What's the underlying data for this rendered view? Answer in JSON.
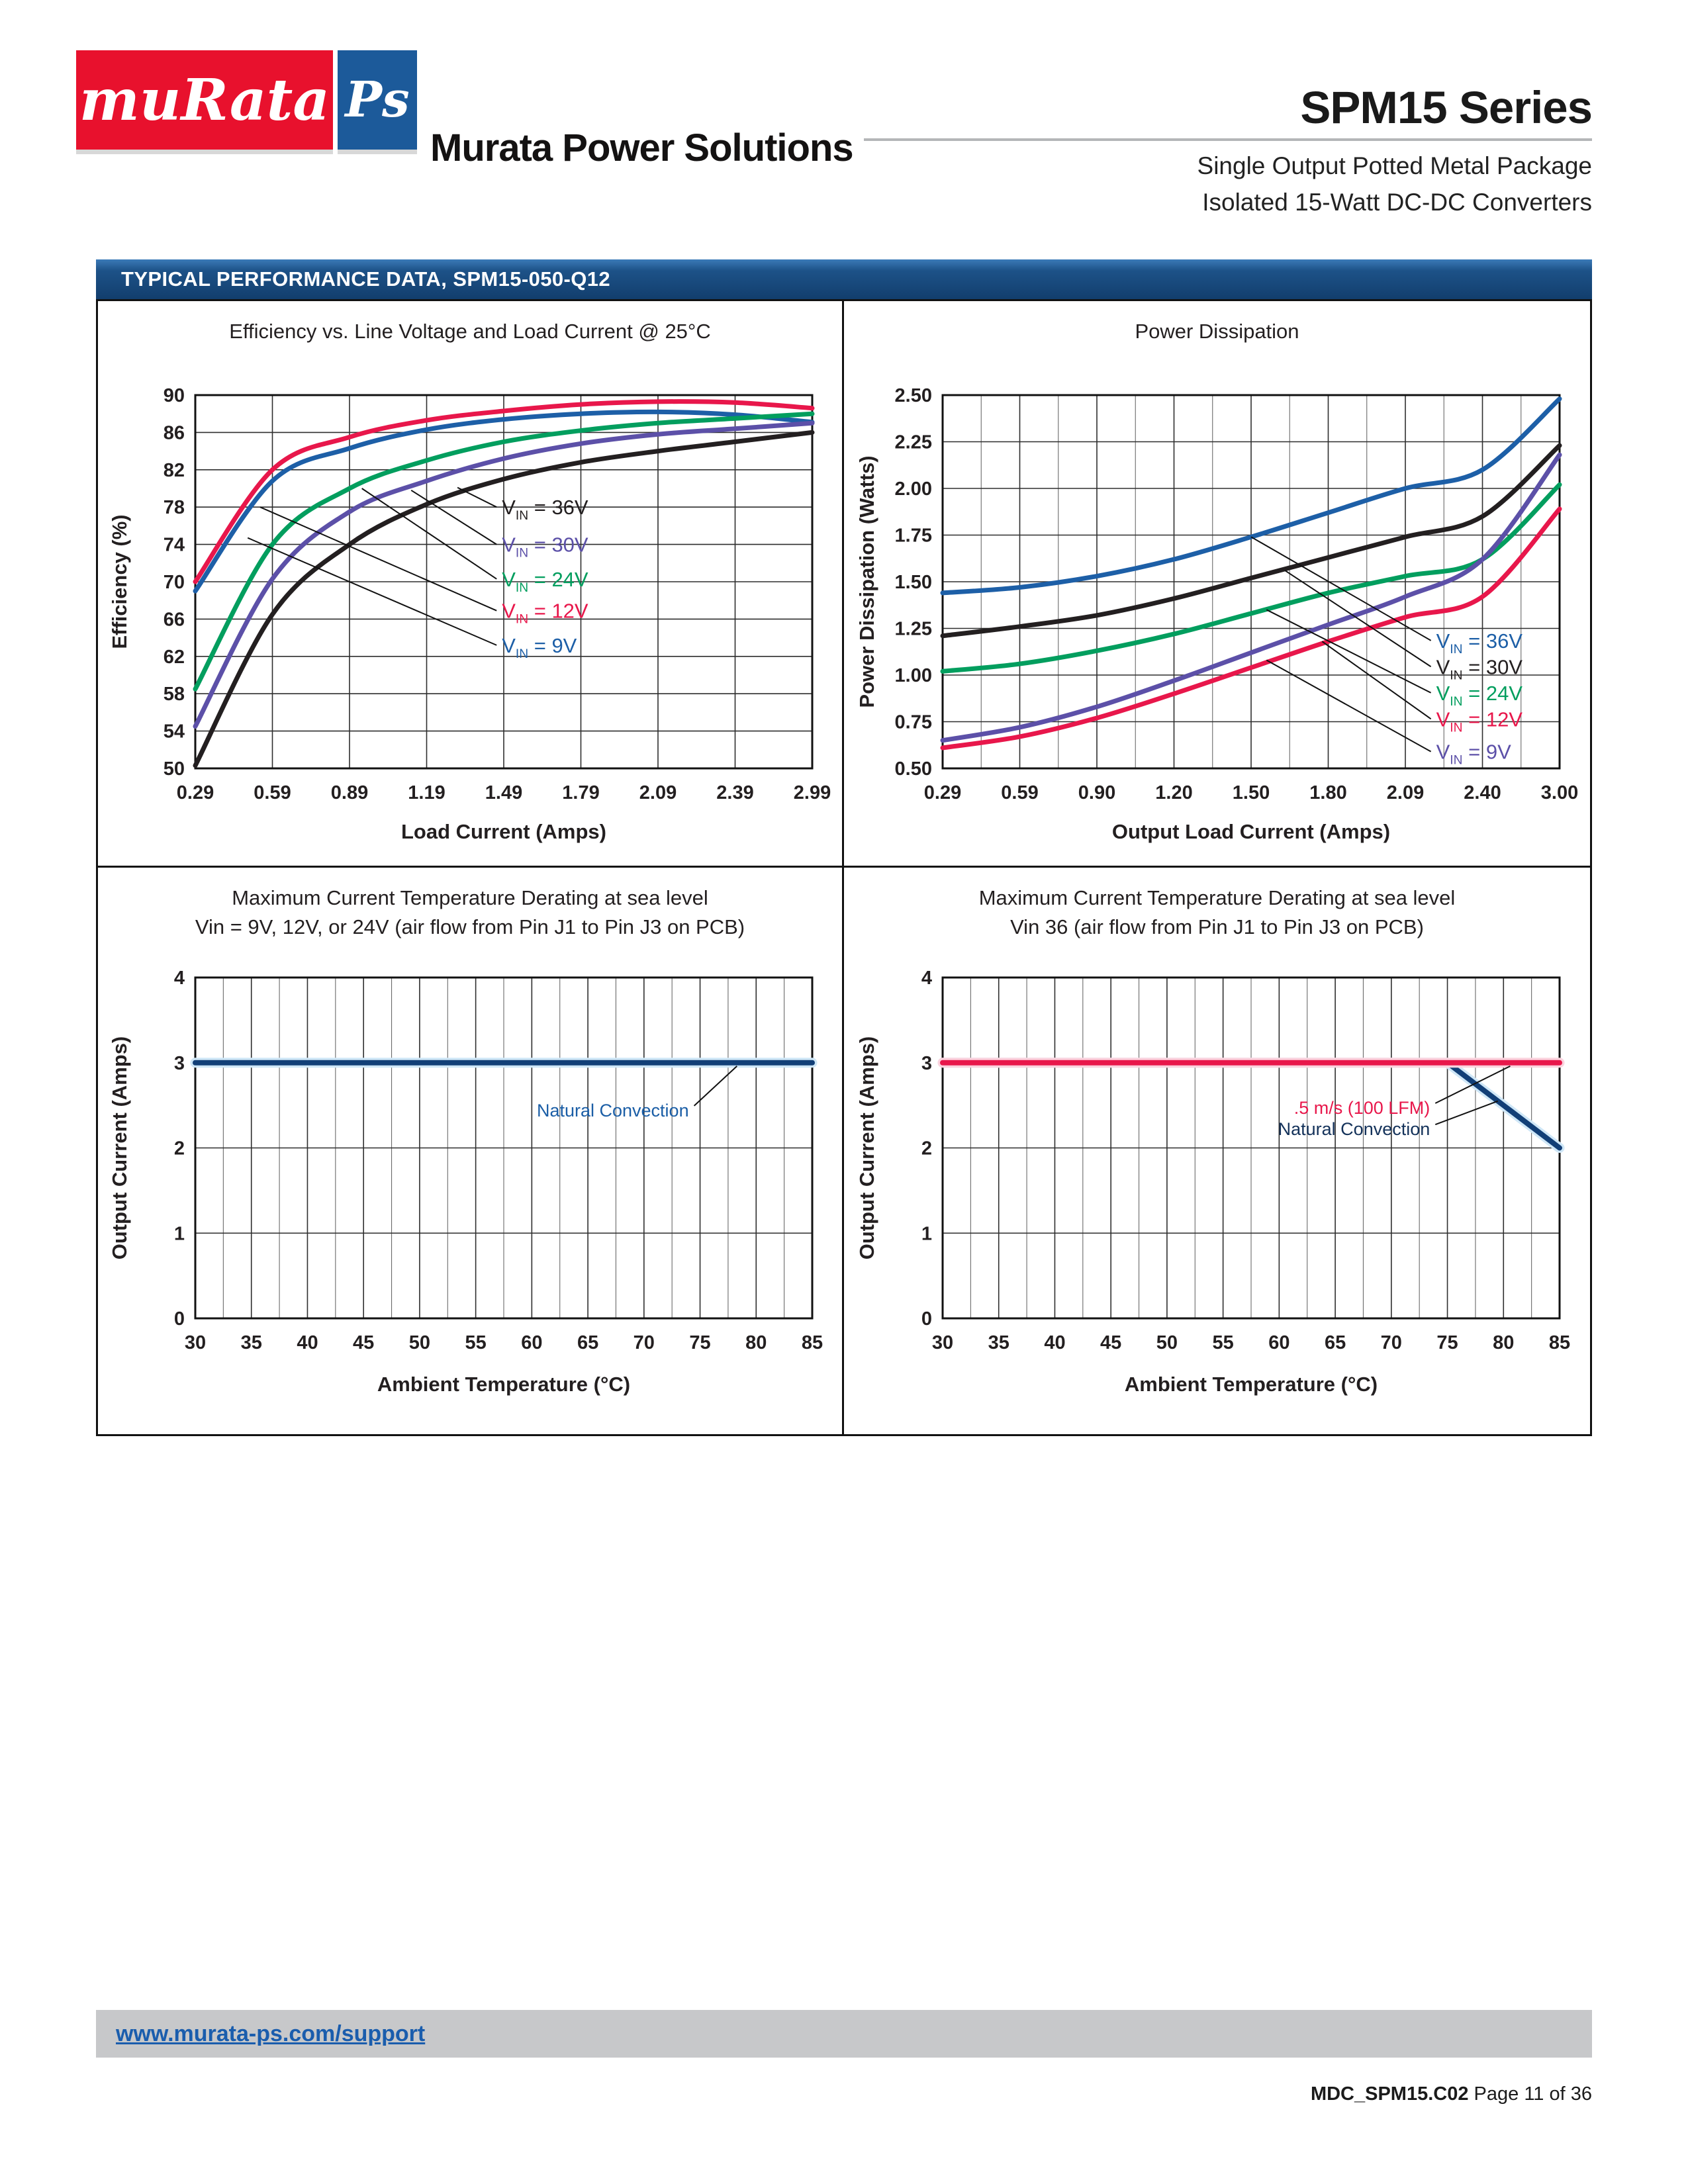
{
  "header": {
    "logo_murata": "muRata",
    "logo_ps": "Ps",
    "company": "Murata Power Solutions",
    "series_title": "SPM15 Series",
    "subtitle_line1": "Single Output Potted Metal Package",
    "subtitle_line2": "Isolated 15-Watt DC-DC Converters"
  },
  "banner": {
    "title": "TYPICAL PERFORMANCE DATA, SPM15-050-Q12"
  },
  "footer": {
    "support_link": "www.murata-ps.com/support",
    "doc_code": "MDC_SPM15.C02",
    "page_info": "Page 11 of 36"
  },
  "colors": {
    "murata_red": "#e8112d",
    "murata_blue": "#1c5a9a",
    "banner_blue": "#123e6d",
    "link_blue": "#1a5dad",
    "footer_gray": "#c7c8ca"
  },
  "chart_data": [
    {
      "type": "line",
      "title": "Efficiency vs. Line Voltage and Load Current @ 25°C",
      "xlabel": "Load Current (Amps)",
      "ylabel": "Efficiency (%)",
      "x_ticks": [
        "0.29",
        "0.59",
        "0.89",
        "1.19",
        "1.49",
        "1.79",
        "2.09",
        "2.39",
        "2.99"
      ],
      "ylim": [
        50,
        90
      ],
      "y_ticks": [
        "50",
        "54",
        "58",
        "62",
        "66",
        "70",
        "74",
        "78",
        "82",
        "86",
        "90"
      ],
      "grid": "on",
      "series": [
        {
          "name": "VIN = 12V",
          "color": "#e8174b",
          "values": [
            70.0,
            82.0,
            85.5,
            87.3,
            88.3,
            89.0,
            89.3,
            89.2,
            88.6
          ]
        },
        {
          "name": "VIN = 9V",
          "color": "#1d5fa7",
          "values": [
            69.0,
            80.8,
            84.3,
            86.3,
            87.4,
            88.0,
            88.2,
            87.9,
            87.1
          ]
        },
        {
          "name": "VIN = 24V",
          "color": "#029e5e",
          "values": [
            58.5,
            74.0,
            80.0,
            83.0,
            85.0,
            86.2,
            87.0,
            87.5,
            88.0
          ]
        },
        {
          "name": "VIN = 30V",
          "color": "#5c50a8",
          "values": [
            54.5,
            70.3,
            77.5,
            80.8,
            83.2,
            84.8,
            85.8,
            86.4,
            87.0
          ]
        },
        {
          "name": "VIN = 36V",
          "color": "#231f20",
          "values": [
            50.3,
            66.5,
            74.0,
            78.3,
            81.0,
            82.8,
            84.0,
            85.0,
            86.0
          ]
        }
      ],
      "legend": [
        {
          "label": "VIN = 36V",
          "color": "#231f20"
        },
        {
          "label": "VIN = 30V",
          "color": "#5c50a8"
        },
        {
          "label": "VIN = 24V",
          "color": "#029e5e"
        },
        {
          "label": "VIN = 12V",
          "color": "#e8174b"
        },
        {
          "label": "VIN = 9V",
          "color": "#1d5fa7"
        }
      ],
      "legend_position": "center-right"
    },
    {
      "type": "line",
      "title": "Power Dissipation",
      "xlabel": "Output Load Current (Amps)",
      "ylabel": "Power Dissipation (Watts)",
      "x_ticks": [
        "0.29",
        "0.59",
        "0.90",
        "1.20",
        "1.50",
        "1.80",
        "2.09",
        "2.40",
        "3.00"
      ],
      "ylim": [
        0.5,
        2.5
      ],
      "y_ticks": [
        "0.50",
        "0.75",
        "1.00",
        "1.25",
        "1.50",
        "1.75",
        "2.00",
        "2.25",
        "2.50"
      ],
      "grid": "on",
      "series": [
        {
          "name": "VIN = 36V",
          "color": "#1d5fa7",
          "values": [
            1.44,
            1.47,
            1.53,
            1.62,
            1.74,
            1.87,
            2.0,
            2.1,
            2.48
          ]
        },
        {
          "name": "VIN = 30V",
          "color": "#231f20",
          "values": [
            1.21,
            1.26,
            1.32,
            1.41,
            1.52,
            1.63,
            1.74,
            1.85,
            2.23
          ]
        },
        {
          "name": "VIN = 24V",
          "color": "#029e5e",
          "values": [
            1.02,
            1.06,
            1.13,
            1.22,
            1.33,
            1.44,
            1.53,
            1.62,
            2.02
          ]
        },
        {
          "name": "VIN = 9V",
          "color": "#5c50a8",
          "values": [
            0.65,
            0.72,
            0.83,
            0.97,
            1.12,
            1.27,
            1.42,
            1.62,
            2.18
          ]
        },
        {
          "name": "VIN = 12V",
          "color": "#e8174b",
          "values": [
            0.61,
            0.67,
            0.77,
            0.9,
            1.04,
            1.18,
            1.31,
            1.42,
            1.89
          ]
        }
      ],
      "legend": [
        {
          "label": "VIN = 36V",
          "color": "#1d5fa7"
        },
        {
          "label": "VIN = 30V",
          "color": "#231f20"
        },
        {
          "label": "VIN = 24V",
          "color": "#029e5e"
        },
        {
          "label": "VIN = 12V",
          "color": "#e8174b"
        },
        {
          "label": "VIN = 9V",
          "color": "#5c50a8"
        }
      ],
      "legend_position": "bottom-right"
    },
    {
      "type": "line",
      "title": "Maximum Current Temperature Derating at sea level",
      "subtitle": "Vin = 9V, 12V, or 24V (air flow from Pin J1 to Pin J3 on PCB)",
      "xlabel": "Ambient Temperature (°C)",
      "ylabel": "Output Current (Amps)",
      "x_ticks": [
        "30",
        "35",
        "40",
        "45",
        "50",
        "55",
        "60",
        "65",
        "70",
        "75",
        "80",
        "85"
      ],
      "ylim": [
        0,
        4
      ],
      "y_ticks": [
        "0",
        "1",
        "2",
        "3",
        "4"
      ],
      "grid": "on",
      "series": [
        {
          "name": "Natural Convection",
          "color": "#123f77",
          "values": [
            3,
            3,
            3,
            3,
            3,
            3,
            3,
            3,
            3,
            3,
            3,
            3
          ]
        }
      ],
      "annotations": [
        {
          "text": "Natural Convection",
          "color": "#1b5ea6"
        }
      ]
    },
    {
      "type": "line",
      "title": "Maximum Current Temperature Derating at sea level",
      "subtitle": "Vin 36 (air flow from Pin J1 to Pin J3 on PCB)",
      "xlabel": "Ambient Temperature (°C)",
      "ylabel": "Output Current (Amps)",
      "x_ticks": [
        "30",
        "35",
        "40",
        "45",
        "50",
        "55",
        "60",
        "65",
        "70",
        "75",
        "80",
        "85"
      ],
      "ylim": [
        0,
        4
      ],
      "y_ticks": [
        "0",
        "1",
        "2",
        "3",
        "4"
      ],
      "grid": "on",
      "series": [
        {
          "name": "Natural Convection",
          "color": "#123f77",
          "values": [
            3,
            3,
            3,
            3,
            3,
            3,
            3,
            3,
            3,
            3,
            2.5,
            2
          ]
        },
        {
          "name": ".5 m/s (100 LFM)",
          "color": "#e8174b",
          "values": [
            3,
            3,
            3,
            3,
            3,
            3,
            3,
            3,
            3,
            3,
            3,
            3
          ]
        }
      ],
      "annotations": [
        {
          "text": ".5 m/s (100 LFM)",
          "color": "#e8174b"
        },
        {
          "text": "Natural Convection",
          "color": "#14325a"
        }
      ]
    }
  ]
}
